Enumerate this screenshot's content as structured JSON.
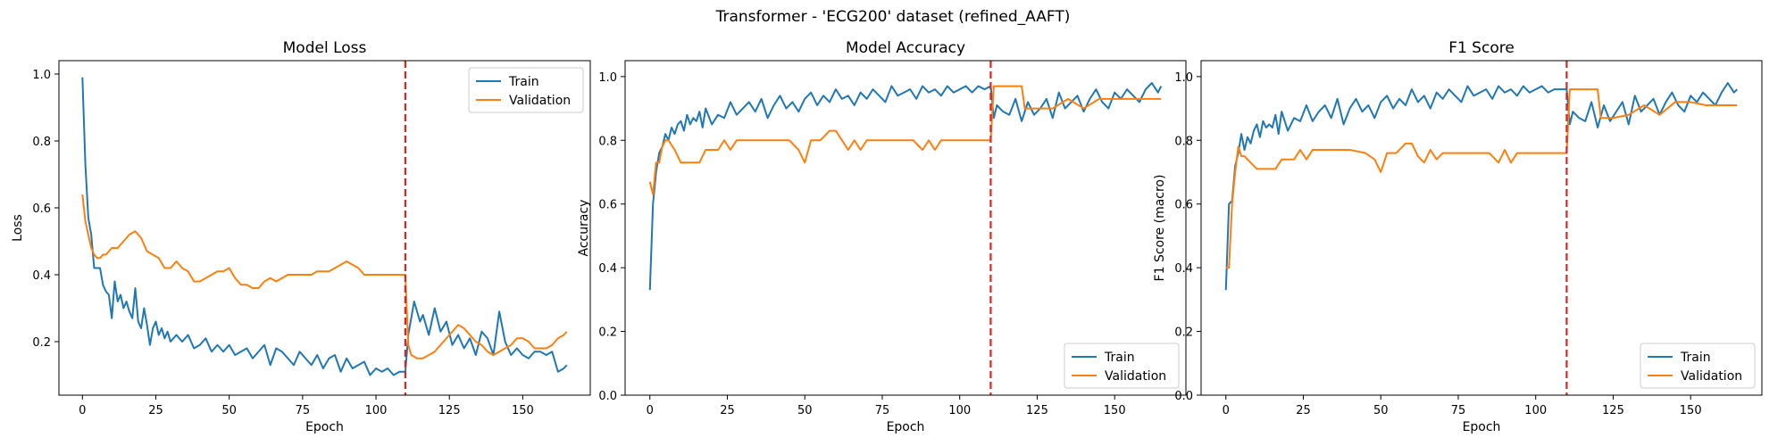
{
  "figure": {
    "suptitle": "Transformer - 'ECG200' dataset (refined_AAFT)"
  },
  "colors": {
    "train": "#1f77b4",
    "validation": "#ff7f0e",
    "marker": "#d62728"
  },
  "chart_data": [
    {
      "type": "line",
      "title": "Model Loss",
      "xlabel": "Epoch",
      "ylabel": "Loss",
      "xlim": [
        -8,
        173
      ],
      "ylim": [
        0.04,
        1.04
      ],
      "xticks": [
        0,
        25,
        50,
        75,
        100,
        125,
        150
      ],
      "yticks": [
        0.2,
        0.4,
        0.6,
        0.8,
        1.0
      ],
      "ytick_labels": [
        "0.2",
        "0.4",
        "0.6",
        "0.8",
        "1.0"
      ],
      "vline_x": 110,
      "legend": "upper-right",
      "series": [
        {
          "name": "Train",
          "key": "train",
          "x": [
            0,
            1,
            2,
            3,
            4,
            5,
            6,
            7,
            8,
            9,
            10,
            11,
            12,
            13,
            14,
            15,
            16,
            17,
            18,
            19,
            20,
            21,
            22,
            23,
            24,
            25,
            26,
            27,
            28,
            29,
            30,
            32,
            34,
            36,
            38,
            40,
            42,
            44,
            46,
            48,
            50,
            52,
            54,
            56,
            58,
            60,
            62,
            64,
            66,
            68,
            70,
            72,
            74,
            76,
            78,
            80,
            82,
            84,
            86,
            88,
            90,
            92,
            94,
            96,
            98,
            100,
            102,
            104,
            106,
            108,
            110,
            111,
            112,
            113,
            114,
            115,
            116,
            118,
            120,
            122,
            124,
            126,
            128,
            130,
            132,
            134,
            136,
            138,
            140,
            142,
            144,
            146,
            148,
            150,
            152,
            154,
            156,
            158,
            160,
            162,
            164,
            165
          ],
          "y": [
            0.99,
            0.73,
            0.57,
            0.52,
            0.42,
            0.42,
            0.42,
            0.37,
            0.35,
            0.34,
            0.27,
            0.38,
            0.32,
            0.34,
            0.3,
            0.32,
            0.29,
            0.27,
            0.36,
            0.26,
            0.24,
            0.3,
            0.25,
            0.19,
            0.24,
            0.26,
            0.22,
            0.24,
            0.21,
            0.23,
            0.2,
            0.22,
            0.2,
            0.22,
            0.18,
            0.19,
            0.21,
            0.17,
            0.19,
            0.17,
            0.19,
            0.16,
            0.17,
            0.18,
            0.15,
            0.17,
            0.19,
            0.13,
            0.18,
            0.17,
            0.15,
            0.13,
            0.17,
            0.15,
            0.13,
            0.16,
            0.12,
            0.15,
            0.16,
            0.11,
            0.15,
            0.12,
            0.13,
            0.14,
            0.1,
            0.12,
            0.11,
            0.12,
            0.1,
            0.11,
            0.11,
            0.22,
            0.27,
            0.32,
            0.29,
            0.26,
            0.28,
            0.22,
            0.3,
            0.23,
            0.26,
            0.19,
            0.22,
            0.18,
            0.21,
            0.16,
            0.23,
            0.21,
            0.16,
            0.29,
            0.2,
            0.16,
            0.18,
            0.16,
            0.15,
            0.17,
            0.17,
            0.16,
            0.17,
            0.11,
            0.12,
            0.13
          ]
        },
        {
          "name": "Validation",
          "key": "validation",
          "x": [
            0,
            1,
            2,
            3,
            4,
            5,
            6,
            7,
            8,
            10,
            12,
            14,
            16,
            18,
            20,
            22,
            24,
            26,
            28,
            30,
            32,
            34,
            36,
            38,
            40,
            42,
            44,
            46,
            48,
            50,
            52,
            54,
            56,
            58,
            60,
            62,
            64,
            66,
            68,
            70,
            72,
            74,
            76,
            78,
            80,
            82,
            84,
            86,
            88,
            90,
            92,
            94,
            96,
            98,
            100,
            102,
            104,
            106,
            108,
            110,
            111,
            112,
            114,
            116,
            118,
            120,
            122,
            124,
            126,
            128,
            130,
            132,
            134,
            136,
            138,
            140,
            142,
            144,
            146,
            148,
            150,
            152,
            154,
            156,
            158,
            160,
            162,
            164,
            165
          ],
          "y": [
            0.64,
            0.56,
            0.52,
            0.48,
            0.46,
            0.45,
            0.45,
            0.46,
            0.46,
            0.48,
            0.48,
            0.5,
            0.52,
            0.53,
            0.51,
            0.47,
            0.46,
            0.45,
            0.42,
            0.42,
            0.44,
            0.42,
            0.41,
            0.38,
            0.38,
            0.39,
            0.4,
            0.41,
            0.41,
            0.42,
            0.39,
            0.37,
            0.37,
            0.36,
            0.36,
            0.38,
            0.39,
            0.38,
            0.39,
            0.4,
            0.4,
            0.4,
            0.4,
            0.4,
            0.41,
            0.41,
            0.41,
            0.42,
            0.43,
            0.44,
            0.43,
            0.42,
            0.4,
            0.4,
            0.4,
            0.4,
            0.4,
            0.4,
            0.4,
            0.4,
            0.19,
            0.16,
            0.15,
            0.15,
            0.16,
            0.17,
            0.19,
            0.21,
            0.23,
            0.25,
            0.24,
            0.22,
            0.2,
            0.19,
            0.17,
            0.16,
            0.17,
            0.18,
            0.19,
            0.21,
            0.21,
            0.2,
            0.18,
            0.18,
            0.18,
            0.19,
            0.21,
            0.22,
            0.23
          ]
        }
      ]
    },
    {
      "type": "line",
      "title": "Model Accuracy",
      "xlabel": "Epoch",
      "ylabel": "Accuracy",
      "xlim": [
        -8,
        173
      ],
      "ylim": [
        0.0,
        1.05
      ],
      "xticks": [
        0,
        25,
        50,
        75,
        100,
        125,
        150
      ],
      "yticks": [
        0.0,
        0.2,
        0.4,
        0.6,
        0.8,
        1.0
      ],
      "ytick_labels": [
        "0.0",
        "0.2",
        "0.4",
        "0.6",
        "0.8",
        "1.0"
      ],
      "vline_x": 110,
      "legend": "lower-right",
      "series": [
        {
          "name": "Train",
          "key": "train",
          "x": [
            0,
            1,
            2,
            3,
            4,
            5,
            6,
            7,
            8,
            9,
            10,
            11,
            12,
            13,
            14,
            15,
            16,
            17,
            18,
            20,
            22,
            24,
            26,
            28,
            30,
            32,
            34,
            36,
            38,
            40,
            42,
            44,
            46,
            48,
            50,
            52,
            54,
            56,
            58,
            60,
            62,
            64,
            66,
            68,
            70,
            72,
            74,
            76,
            78,
            80,
            82,
            84,
            86,
            88,
            90,
            92,
            94,
            96,
            98,
            100,
            102,
            104,
            106,
            108,
            110,
            111,
            112,
            114,
            116,
            118,
            120,
            122,
            124,
            126,
            128,
            130,
            132,
            134,
            136,
            138,
            140,
            142,
            144,
            146,
            148,
            150,
            152,
            154,
            156,
            158,
            160,
            162,
            164,
            165
          ],
          "y": [
            0.33,
            0.6,
            0.7,
            0.76,
            0.78,
            0.82,
            0.8,
            0.84,
            0.82,
            0.85,
            0.86,
            0.83,
            0.88,
            0.85,
            0.87,
            0.86,
            0.89,
            0.84,
            0.9,
            0.85,
            0.88,
            0.87,
            0.92,
            0.88,
            0.9,
            0.92,
            0.89,
            0.93,
            0.87,
            0.91,
            0.94,
            0.9,
            0.92,
            0.89,
            0.93,
            0.95,
            0.91,
            0.94,
            0.92,
            0.96,
            0.93,
            0.94,
            0.91,
            0.95,
            0.93,
            0.96,
            0.94,
            0.92,
            0.97,
            0.94,
            0.95,
            0.96,
            0.93,
            0.97,
            0.95,
            0.96,
            0.94,
            0.97,
            0.95,
            0.96,
            0.97,
            0.95,
            0.97,
            0.96,
            0.97,
            0.87,
            0.91,
            0.89,
            0.88,
            0.93,
            0.86,
            0.92,
            0.88,
            0.9,
            0.93,
            0.87,
            0.95,
            0.9,
            0.92,
            0.94,
            0.89,
            0.93,
            0.96,
            0.92,
            0.9,
            0.95,
            0.93,
            0.96,
            0.94,
            0.92,
            0.96,
            0.98,
            0.95,
            0.97
          ]
        },
        {
          "name": "Validation",
          "key": "validation",
          "x": [
            0,
            1,
            2,
            3,
            4,
            5,
            6,
            8,
            10,
            12,
            14,
            16,
            18,
            20,
            22,
            24,
            26,
            28,
            30,
            35,
            40,
            45,
            48,
            50,
            52,
            55,
            58,
            60,
            62,
            64,
            66,
            68,
            70,
            75,
            80,
            85,
            88,
            90,
            92,
            94,
            96,
            100,
            105,
            110,
            111,
            120,
            121,
            125,
            130,
            135,
            140,
            145,
            150,
            155,
            160,
            165
          ],
          "y": [
            0.67,
            0.63,
            0.73,
            0.73,
            0.78,
            0.8,
            0.8,
            0.77,
            0.73,
            0.73,
            0.73,
            0.73,
            0.77,
            0.77,
            0.77,
            0.8,
            0.77,
            0.8,
            0.8,
            0.8,
            0.8,
            0.8,
            0.77,
            0.73,
            0.8,
            0.8,
            0.83,
            0.83,
            0.8,
            0.77,
            0.8,
            0.77,
            0.8,
            0.8,
            0.8,
            0.8,
            0.77,
            0.8,
            0.77,
            0.8,
            0.8,
            0.8,
            0.8,
            0.8,
            0.97,
            0.97,
            0.9,
            0.9,
            0.9,
            0.93,
            0.9,
            0.93,
            0.93,
            0.93,
            0.93,
            0.93
          ]
        }
      ]
    },
    {
      "type": "line",
      "title": "F1 Score",
      "xlabel": "Epoch",
      "ylabel": "F1 Score (macro)",
      "xlim": [
        -8,
        173
      ],
      "ylim": [
        0.0,
        1.05
      ],
      "xticks": [
        0,
        25,
        50,
        75,
        100,
        125,
        150
      ],
      "yticks": [
        0.0,
        0.2,
        0.4,
        0.6,
        0.8,
        1.0
      ],
      "ytick_labels": [
        "0.0",
        "0.2",
        "0.4",
        "0.6",
        "0.8",
        "1.0"
      ],
      "vline_x": 110,
      "legend": "lower-right",
      "series": [
        {
          "name": "Train",
          "key": "train",
          "x": [
            0,
            1,
            2,
            3,
            4,
            5,
            6,
            7,
            8,
            9,
            10,
            11,
            12,
            13,
            14,
            15,
            16,
            17,
            18,
            20,
            22,
            24,
            26,
            28,
            30,
            32,
            34,
            36,
            38,
            40,
            42,
            44,
            46,
            48,
            50,
            52,
            54,
            56,
            58,
            60,
            62,
            64,
            66,
            68,
            70,
            72,
            74,
            76,
            78,
            80,
            82,
            84,
            86,
            88,
            90,
            92,
            94,
            96,
            98,
            100,
            102,
            104,
            106,
            108,
            110,
            111,
            112,
            114,
            116,
            118,
            120,
            122,
            124,
            126,
            128,
            130,
            132,
            134,
            136,
            138,
            140,
            142,
            144,
            146,
            148,
            150,
            152,
            154,
            156,
            158,
            160,
            162,
            164,
            165
          ],
          "y": [
            0.33,
            0.6,
            0.61,
            0.72,
            0.76,
            0.82,
            0.77,
            0.81,
            0.79,
            0.83,
            0.85,
            0.81,
            0.86,
            0.84,
            0.85,
            0.84,
            0.88,
            0.82,
            0.89,
            0.83,
            0.87,
            0.86,
            0.91,
            0.86,
            0.89,
            0.91,
            0.87,
            0.93,
            0.85,
            0.9,
            0.93,
            0.89,
            0.91,
            0.87,
            0.92,
            0.94,
            0.9,
            0.93,
            0.91,
            0.96,
            0.92,
            0.94,
            0.9,
            0.95,
            0.93,
            0.96,
            0.94,
            0.92,
            0.97,
            0.94,
            0.95,
            0.96,
            0.93,
            0.97,
            0.95,
            0.96,
            0.94,
            0.97,
            0.95,
            0.96,
            0.97,
            0.95,
            0.96,
            0.96,
            0.96,
            0.85,
            0.89,
            0.87,
            0.86,
            0.92,
            0.84,
            0.91,
            0.86,
            0.89,
            0.92,
            0.85,
            0.94,
            0.89,
            0.91,
            0.93,
            0.88,
            0.92,
            0.95,
            0.91,
            0.89,
            0.94,
            0.92,
            0.95,
            0.93,
            0.91,
            0.95,
            0.98,
            0.95,
            0.96
          ]
        },
        {
          "name": "Validation",
          "key": "validation",
          "x": [
            0,
            1,
            2,
            3,
            4,
            5,
            6,
            8,
            10,
            12,
            14,
            16,
            18,
            20,
            22,
            24,
            26,
            28,
            30,
            35,
            40,
            45,
            48,
            50,
            52,
            55,
            58,
            60,
            62,
            64,
            66,
            68,
            70,
            75,
            80,
            85,
            88,
            90,
            92,
            94,
            96,
            100,
            105,
            110,
            111,
            120,
            121,
            125,
            130,
            135,
            140,
            145,
            150,
            155,
            160,
            165
          ],
          "y": [
            0.4,
            0.4,
            0.6,
            0.7,
            0.78,
            0.75,
            0.75,
            0.73,
            0.71,
            0.71,
            0.71,
            0.71,
            0.74,
            0.74,
            0.74,
            0.77,
            0.74,
            0.77,
            0.77,
            0.77,
            0.77,
            0.76,
            0.74,
            0.7,
            0.76,
            0.76,
            0.79,
            0.79,
            0.75,
            0.73,
            0.77,
            0.74,
            0.76,
            0.76,
            0.76,
            0.76,
            0.73,
            0.77,
            0.73,
            0.76,
            0.76,
            0.76,
            0.76,
            0.76,
            0.96,
            0.96,
            0.87,
            0.87,
            0.88,
            0.91,
            0.88,
            0.92,
            0.92,
            0.91,
            0.91,
            0.91
          ]
        }
      ]
    }
  ]
}
